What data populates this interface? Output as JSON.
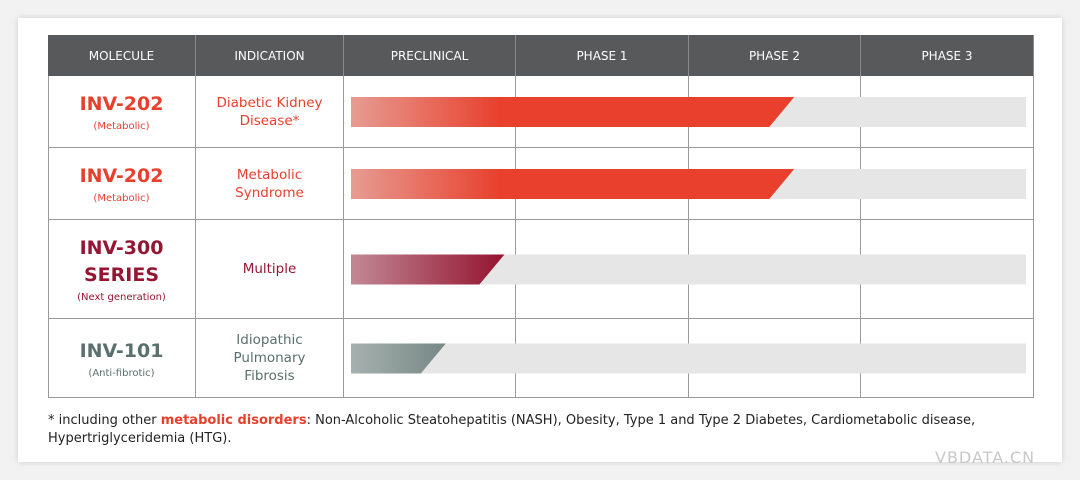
{
  "header": [
    "MOLECULE",
    "INDICATION",
    "PRECLINICAL",
    "PHASE 1",
    "PHASE 2",
    "PHASE 3"
  ],
  "rows": [
    {
      "molecule": "INV-202",
      "note": "(Metabolic)",
      "indication": "Diabetic Kidney Disease*",
      "color": "#e8402d",
      "progress": 2.61
    },
    {
      "molecule": "INV-202",
      "note": "(Metabolic)",
      "indication": "Metabolic Syndrome",
      "color": "#e8402d",
      "progress": 2.61
    },
    {
      "molecule": "INV-300 SERIES",
      "note": "(Next generation)",
      "indication": "Multiple",
      "color": "#951632",
      "progress": 0.93
    },
    {
      "molecule": "INV-101",
      "note": "(Anti-fibrotic)",
      "indication": "Idiopathic Pulmonary Fibrosis",
      "color": "#5a706c",
      "progress": 0.59
    }
  ],
  "footnote": {
    "start": "* including other ",
    "highlight": "metabolic disorders",
    "rest": ": Non-Alcoholic Steatohepatitis (NASH), Obesity, Type 1 and Type 2 Diabetes, Cardiometabolic disease, Hypertriglyceridemia (HTG)."
  },
  "watermark": "VBDATA.CN"
}
